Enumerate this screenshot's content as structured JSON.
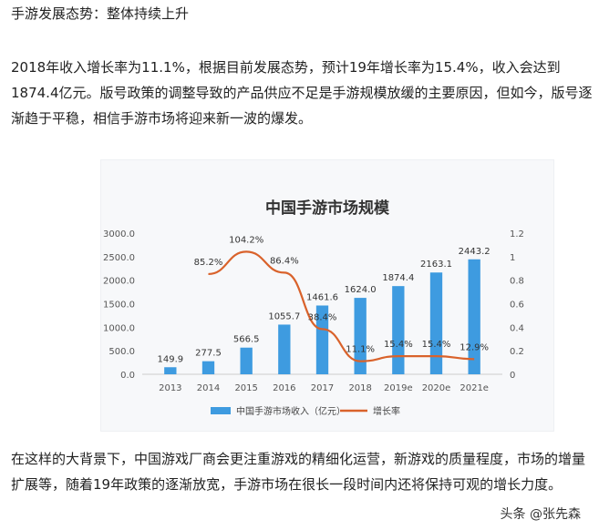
{
  "heading": "手游发展态势：整体持续上升",
  "paragraph1": "2018年收入增长率为11.1%，根据目前发展态势，预计19年增长率为15.4%，收入会达到1874.4亿元。版号政策的调整导致的产品供应不足是手游规模放缓的主要原因，但如今，版号逐渐趋于平稳，相信手游市场将迎来新一波的爆发。",
  "paragraph2": "在这样的大背景下，中国游戏厂商会更注重游戏的精细化运营，新游戏的质量程度，市场的增量扩展等，随着19年政策的逐渐放宽，手游市场在很长一段时间内还将保持可观的增长力度。",
  "watermark": "头条 @张先森",
  "chart_data": {
    "type": "bar",
    "title": "中国手游市场规模",
    "categories": [
      "2013",
      "2014",
      "2015",
      "2016",
      "2017",
      "2018",
      "2019e",
      "2020e",
      "2021e"
    ],
    "series": [
      {
        "name": "中国手游市场收入（亿元）",
        "kind": "bar",
        "axis": "left",
        "color": "#3e9be0",
        "values": [
          149.9,
          277.5,
          566.5,
          1055.7,
          1461.6,
          1624.0,
          1874.4,
          2163.1,
          2443.2
        ],
        "labels": [
          "149.9",
          "277.5",
          "566.5",
          "1055.7",
          "1461.6",
          "1624.0",
          "1874.4",
          "2163.1",
          "2443.2"
        ]
      },
      {
        "name": "增长率",
        "kind": "line",
        "axis": "right",
        "color": "#d9622b",
        "values": [
          null,
          0.852,
          1.042,
          0.864,
          0.384,
          0.111,
          0.154,
          0.154,
          0.129
        ],
        "labels": [
          "",
          "85.2%",
          "104.2%",
          "86.4%",
          "38.4%",
          "11.1%",
          "15.4%",
          "15.4%",
          "12.9%"
        ]
      }
    ],
    "ylim": [
      0,
      3000
    ],
    "yticks": [
      "0.0",
      "500.0",
      "1000.0",
      "1500.0",
      "2000.0",
      "2500.0",
      "3000.0"
    ],
    "y2lim": [
      0,
      1.2
    ],
    "y2ticks": [
      "0",
      "0.2",
      "0.4",
      "0.6",
      "0.8",
      "1",
      "1.2"
    ],
    "legend_position": "bottom"
  }
}
